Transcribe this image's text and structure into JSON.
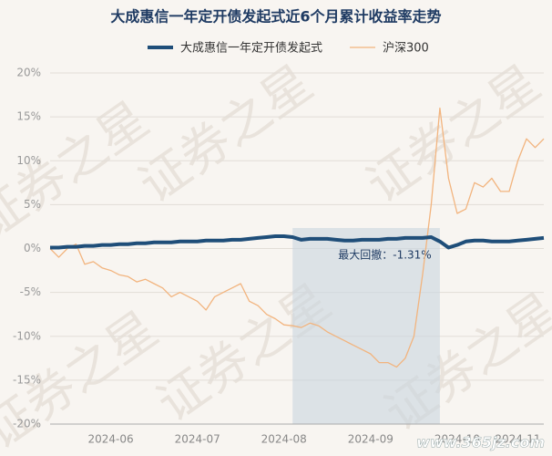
{
  "chart_data": {
    "type": "line",
    "title": "大成惠信一年定开债发起式近6个月累计收益率走势",
    "categories": [
      null,
      null,
      null,
      null,
      null,
      null,
      null,
      "2024-06",
      null,
      null,
      null,
      null,
      null,
      null,
      null,
      null,
      null,
      "2024-07",
      null,
      null,
      null,
      null,
      null,
      null,
      null,
      null,
      null,
      "2024-08",
      null,
      null,
      null,
      null,
      null,
      null,
      null,
      null,
      null,
      "2024-09",
      null,
      null,
      null,
      null,
      null,
      null,
      null,
      null,
      null,
      "2024-10",
      null,
      null,
      null,
      null,
      null,
      null,
      "2024-11",
      null,
      null,
      null
    ],
    "series": [
      {
        "name": "大成惠信一年定开债发起式",
        "color": "#1f4e79",
        "width": 4,
        "values": [
          0.1,
          0.1,
          0.2,
          0.2,
          0.3,
          0.3,
          0.4,
          0.4,
          0.5,
          0.5,
          0.6,
          0.6,
          0.7,
          0.7,
          0.7,
          0.8,
          0.8,
          0.8,
          0.9,
          0.9,
          0.9,
          1.0,
          1.0,
          1.1,
          1.2,
          1.3,
          1.4,
          1.4,
          1.3,
          1.0,
          1.1,
          1.1,
          1.1,
          1.0,
          0.9,
          0.9,
          1.0,
          1.0,
          1.0,
          1.1,
          1.1,
          1.2,
          1.2,
          1.2,
          1.3,
          0.8,
          0.1,
          0.4,
          0.8,
          0.9,
          0.9,
          0.8,
          0.8,
          0.8,
          0.9,
          1.0,
          1.1,
          1.2
        ]
      },
      {
        "name": "沪深300",
        "color": "#f2b47e",
        "width": 1.3,
        "values": [
          0,
          -1.0,
          0,
          0.5,
          -1.8,
          -1.5,
          -2.2,
          -2.5,
          -3.0,
          -3.2,
          -3.8,
          -3.5,
          -4.0,
          -4.5,
          -5.5,
          -5.0,
          -5.5,
          -6.0,
          -7.0,
          -5.5,
          -5.0,
          -4.5,
          -4.0,
          -6.0,
          -6.5,
          -7.5,
          -8.0,
          -8.7,
          -8.8,
          -9.0,
          -8.5,
          -8.8,
          -9.5,
          -10.0,
          -10.5,
          -11.0,
          -11.5,
          -12.0,
          -13.0,
          -13.0,
          -13.5,
          -12.5,
          -10.0,
          -3.0,
          5.0,
          16.0,
          8.0,
          4.0,
          4.5,
          7.5,
          7.0,
          8.0,
          6.5,
          6.5,
          10.0,
          12.5,
          11.5,
          12.5
        ]
      }
    ],
    "ylim": [
      -20,
      20
    ],
    "yticks": [
      {
        "value": -20,
        "label": "-20%"
      },
      {
        "value": -15,
        "label": "-15%"
      },
      {
        "value": -10,
        "label": "-10%"
      },
      {
        "value": -5,
        "label": "-5%"
      },
      {
        "value": 0,
        "label": "0%"
      },
      {
        "value": 5,
        "label": "5%"
      },
      {
        "value": 10,
        "label": "10%"
      },
      {
        "value": 15,
        "label": "15%"
      },
      {
        "value": 20,
        "label": "20%"
      }
    ],
    "grid": true,
    "legend": "top",
    "drawdown": {
      "label": "最大回撤：-1.31%",
      "start": 28,
      "end": 45
    },
    "watermark": "证券之星",
    "site": "www.365jz.com"
  }
}
